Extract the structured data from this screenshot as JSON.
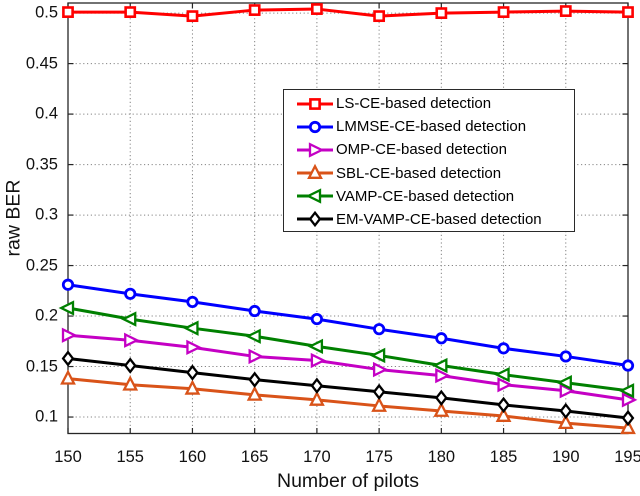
{
  "figure": {
    "background": "#ffffff",
    "axis_color": "#262626",
    "grid_color": "#848484",
    "text_color": "#111111"
  },
  "chart_data": {
    "type": "line",
    "title": "",
    "xlabel": "Number of pilots",
    "ylabel": "raw BER",
    "xlim": [
      150,
      195
    ],
    "ylim": [
      0.0837,
      0.51
    ],
    "x_ticks": [
      150,
      155,
      160,
      165,
      170,
      175,
      180,
      185,
      190,
      195
    ],
    "y_ticks": [
      0.1,
      0.15,
      0.2,
      0.25,
      0.3,
      0.35,
      0.4,
      0.45,
      0.5
    ],
    "grid": true,
    "grid_style": "dotted",
    "legend_position": "upper-center",
    "x": [
      150,
      155,
      160,
      165,
      170,
      175,
      180,
      185,
      190,
      195
    ],
    "series": [
      {
        "name": "LS-CE-based detection",
        "color": "#FF0000",
        "marker": "square",
        "values": [
          0.501,
          0.501,
          0.497,
          0.503,
          0.504,
          0.497,
          0.5,
          0.501,
          0.502,
          0.501
        ]
      },
      {
        "name": "LMMSE-CE-based detection",
        "color": "#0000FF",
        "marker": "circle",
        "values": [
          0.231,
          0.222,
          0.214,
          0.205,
          0.197,
          0.187,
          0.178,
          0.168,
          0.16,
          0.151
        ]
      },
      {
        "name": "OMP-CE-based detection",
        "color": "#C400C4",
        "marker": "triangle-right",
        "values": [
          0.181,
          0.176,
          0.169,
          0.16,
          0.156,
          0.147,
          0.141,
          0.132,
          0.126,
          0.117
        ]
      },
      {
        "name": "SBL-CE-based detection",
        "color": "#D95319",
        "marker": "triangle-up",
        "values": [
          0.138,
          0.132,
          0.128,
          0.122,
          0.117,
          0.111,
          0.106,
          0.101,
          0.094,
          0.089
        ]
      },
      {
        "name": "VAMP-CE-based detection",
        "color": "#008000",
        "marker": "triangle-left",
        "values": [
          0.208,
          0.197,
          0.188,
          0.18,
          0.17,
          0.161,
          0.151,
          0.142,
          0.134,
          0.126
        ]
      },
      {
        "name": "EM-VAMP-CE-based detection",
        "color": "#000000",
        "marker": "diamond",
        "values": [
          0.158,
          0.151,
          0.144,
          0.137,
          0.131,
          0.125,
          0.119,
          0.112,
          0.106,
          0.099
        ]
      }
    ]
  }
}
